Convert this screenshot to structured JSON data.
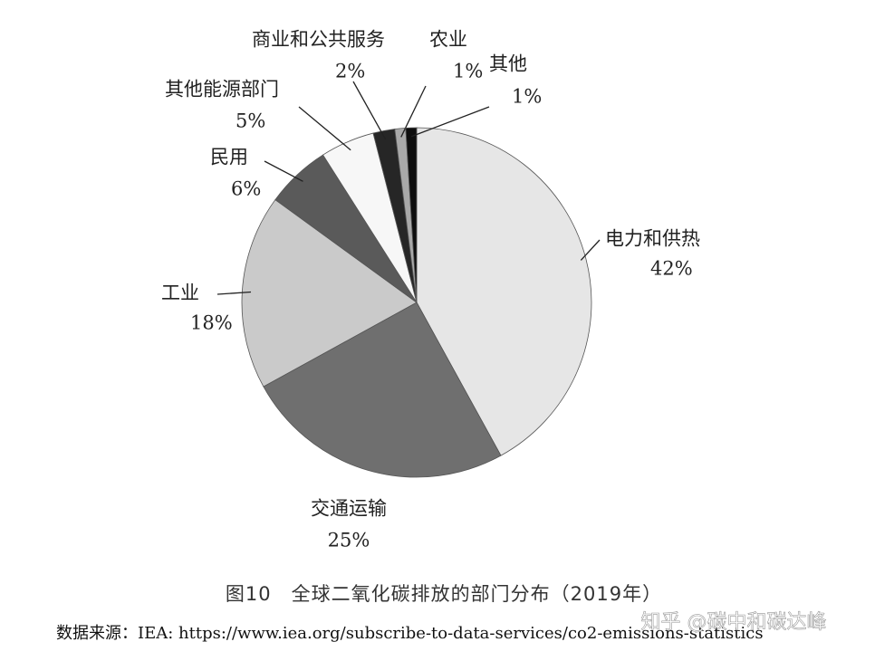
{
  "chart_data": {
    "type": "pie",
    "categories": [
      "电力和供热",
      "交通运输",
      "工业",
      "民用",
      "其他能源部门",
      "商业和公共服务",
      "农业",
      "其他"
    ],
    "values": [
      42,
      25,
      18,
      6,
      5,
      2,
      1,
      1
    ],
    "value_labels": [
      "42%",
      "25%",
      "18%",
      "6%",
      "5%",
      "2%",
      "1%",
      "1%"
    ],
    "colors": [
      "#e6e6e6",
      "#6f6f6f",
      "#cacaca",
      "#5a5a5a",
      "#f7f7f7",
      "#262626",
      "#a9a9a9",
      "#0e0e0e"
    ],
    "title": "图10　全球二氧化碳排放的部门分布（2019年）",
    "source": "数据来源：IEA: https://www.iea.org/subscribe-to-data-services/co2-emissions-statistics",
    "watermark": "知乎 @碳中和碳达峰"
  }
}
